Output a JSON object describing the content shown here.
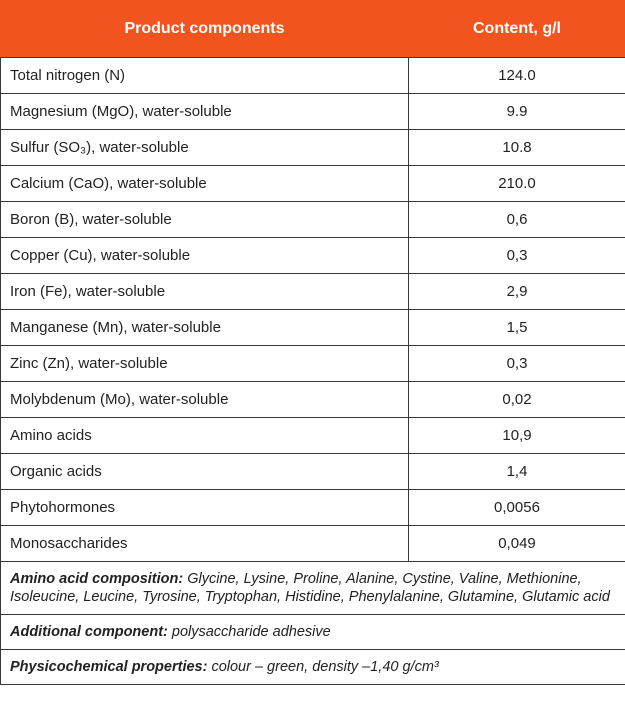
{
  "table": {
    "header": [
      "Product components",
      "Content, g/l"
    ],
    "rows": [
      [
        "Total nitrogen (N)",
        "124.0"
      ],
      [
        "Magnesium (MgO), water-soluble",
        "9.9"
      ],
      [
        "Sulfur  (SO₃), water-soluble",
        "10.8"
      ],
      [
        "Calcium (CaO), water-soluble",
        "210.0"
      ],
      [
        "Boron (B), water-soluble",
        "0,6"
      ],
      [
        "Copper (Cu), water-soluble",
        "0,3"
      ],
      [
        "Iron (Fe), water-soluble",
        "2,9"
      ],
      [
        "Manganese (Mn), water-soluble",
        "1,5"
      ],
      [
        "Zinc (Zn), water-soluble",
        "0,3"
      ],
      [
        "Molybdenum (Mo), water-soluble",
        "0,02"
      ],
      [
        "Amino acids",
        "10,9"
      ],
      [
        "Organic acids",
        "1,4"
      ],
      [
        "Phytohormones",
        "0,0056"
      ],
      [
        "Monosaccharides",
        "0,049"
      ]
    ]
  },
  "notes": [
    {
      "label": "Amino acid composition:",
      "text": "Glycine, Lysine, Proline, Alanine, Cystine, Valine, Methionine, Isoleucine, Leucine, Tyrosine, Tryptophan, Histidine, Phenylalanine, Glutamine, Glutamic acid"
    },
    {
      "label": "Additional component:",
      "text": "polysaccharide adhesive"
    },
    {
      "label": "Physicochemical properties:",
      "text": "colour – green, density –1,40 g/cm³"
    }
  ]
}
